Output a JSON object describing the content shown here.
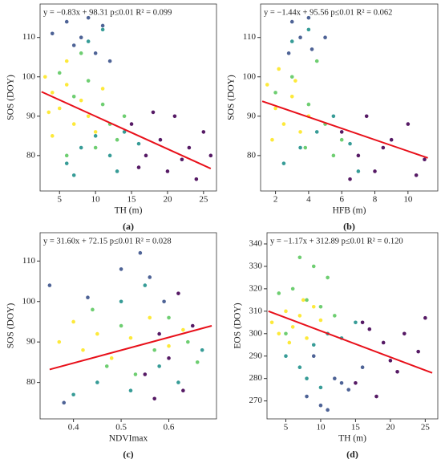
{
  "chart_data": [
    {
      "type": "scatter",
      "annotation": "y = −0.83x + 98.31  p≤0.01 R² = 0.099",
      "panel_label": "(a)",
      "x_label": "TH (m)",
      "y_label": "SOS (DOY)",
      "xlim": [
        2.3,
        26.8
      ],
      "ylim": [
        71,
        118.5
      ],
      "xticks": [
        5,
        10,
        15,
        20,
        25
      ],
      "yticks": [
        80,
        90,
        100,
        110
      ],
      "series": [
        {
          "color": "#fde725",
          "x": [
            3,
            4,
            5,
            6,
            7,
            8,
            9,
            4,
            6,
            10,
            11,
            3.5
          ],
          "values": [
            100,
            96,
            92,
            98,
            88,
            94,
            90,
            85,
            104,
            86,
            97,
            91
          ]
        },
        {
          "color": "#5ec962",
          "x": [
            5,
            7,
            9,
            11,
            12,
            13,
            8,
            6,
            10,
            14
          ],
          "values": [
            101,
            95,
            99,
            93,
            88,
            84,
            106,
            80,
            82,
            90
          ]
        },
        {
          "color": "#21918c",
          "x": [
            6,
            8,
            10,
            12,
            14,
            16,
            9,
            11,
            13,
            7
          ],
          "values": [
            78,
            82,
            85,
            80,
            86,
            83,
            109,
            112,
            76,
            75
          ]
        },
        {
          "color": "#3b528b",
          "x": [
            4,
            6,
            8,
            9,
            11,
            7,
            10,
            12
          ],
          "values": [
            111,
            114,
            110,
            115,
            113,
            108,
            106,
            104
          ]
        },
        {
          "color": "#440154",
          "x": [
            15,
            17,
            19,
            20,
            21,
            22,
            23,
            24,
            25,
            18,
            16,
            26
          ],
          "values": [
            88,
            80,
            84,
            76,
            90,
            79,
            82,
            74,
            86,
            91,
            77,
            80
          ]
        }
      ],
      "fit": {
        "color": "#e8101a",
        "x": [
          2.5,
          26
        ],
        "values": [
          96.2,
          76.7
        ]
      }
    },
    {
      "type": "scatter",
      "annotation": "y = −1.44x + 95.56  p≤0.01 R² = 0.062",
      "panel_label": "(b)",
      "x_label": "HFB (m)",
      "y_label": "SOS (DOY)",
      "xlim": [
        1.1,
        11.8
      ],
      "ylim": [
        71,
        118.5
      ],
      "xticks": [
        2,
        4,
        6,
        8,
        10
      ],
      "yticks": [
        80,
        90,
        100,
        110
      ],
      "series": [
        {
          "color": "#fde725",
          "x": [
            1.5,
            2,
            2.5,
            3,
            3.5,
            2.2,
            4,
            1.8,
            3.2
          ],
          "values": [
            98,
            92,
            88,
            95,
            86,
            102,
            90,
            84,
            99
          ]
        },
        {
          "color": "#5ec962",
          "x": [
            2,
            3,
            4,
            5,
            6,
            4.5,
            5.5,
            3.8
          ],
          "values": [
            96,
            100,
            93,
            88,
            84,
            104,
            80,
            82
          ]
        },
        {
          "color": "#21918c",
          "x": [
            2.5,
            3.5,
            4.5,
            5.5,
            6.5,
            7,
            3,
            4
          ],
          "values": [
            78,
            82,
            86,
            90,
            83,
            76,
            109,
            112
          ]
        },
        {
          "color": "#3b528b",
          "x": [
            3,
            3.5,
            4,
            4.2,
            2.8,
            5
          ],
          "values": [
            114,
            110,
            115,
            107,
            106,
            110
          ]
        },
        {
          "color": "#440154",
          "x": [
            6,
            7,
            7.5,
            8,
            9,
            10,
            10.5,
            11,
            6.5,
            8.5
          ],
          "values": [
            86,
            80,
            90,
            76,
            84,
            88,
            75,
            79,
            74,
            82
          ]
        }
      ],
      "fit": {
        "color": "#e8101a",
        "x": [
          1.2,
          11.2
        ],
        "values": [
          93.8,
          79.4
        ]
      }
    },
    {
      "type": "scatter",
      "annotation": "y = 31.60x + 72.15  p≤0.01 R² = 0.028",
      "panel_label": "(c)",
      "x_label": "NDVImax",
      "y_label": "SOS (DOY)",
      "xlim": [
        0.33,
        0.7
      ],
      "ylim": [
        71,
        117
      ],
      "xticks": [
        0.4,
        0.5,
        0.6
      ],
      "yticks": [
        80,
        90,
        100,
        110
      ],
      "series": [
        {
          "color": "#fde725",
          "x": [
            0.37,
            0.4,
            0.42,
            0.45,
            0.48,
            0.52,
            0.56,
            0.6,
            0.63
          ],
          "values": [
            90,
            95,
            88,
            92,
            86,
            91,
            96,
            89,
            93
          ]
        },
        {
          "color": "#5ec962",
          "x": [
            0.44,
            0.47,
            0.5,
            0.53,
            0.57,
            0.6,
            0.64,
            0.66
          ],
          "values": [
            98,
            84,
            94,
            82,
            88,
            96,
            90,
            85
          ]
        },
        {
          "color": "#21918c",
          "x": [
            0.45,
            0.5,
            0.52,
            0.55,
            0.58,
            0.62,
            0.67,
            0.4
          ],
          "values": [
            80,
            100,
            78,
            104,
            84,
            80,
            88,
            77
          ]
        },
        {
          "color": "#3b528b",
          "x": [
            0.35,
            0.43,
            0.5,
            0.54,
            0.56,
            0.59,
            0.38
          ],
          "values": [
            104,
            101,
            108,
            112,
            106,
            100,
            75
          ]
        },
        {
          "color": "#440154",
          "x": [
            0.55,
            0.58,
            0.6,
            0.62,
            0.63,
            0.65,
            0.57
          ],
          "values": [
            82,
            92,
            86,
            102,
            78,
            94,
            76
          ]
        }
      ],
      "fit": {
        "color": "#e8101a",
        "x": [
          0.35,
          0.69
        ],
        "values": [
          83.2,
          94
        ]
      }
    },
    {
      "type": "scatter",
      "annotation": "y = −1.17x + 312.89  p≤0.01 R² = 0.120",
      "panel_label": "(d)",
      "x_label": "TH (m)",
      "y_label": "EOS (DOY)",
      "xlim": [
        2.3,
        26.8
      ],
      "ylim": [
        262,
        345
      ],
      "xticks": [
        5,
        10,
        15,
        20,
        25
      ],
      "yticks": [
        270,
        280,
        290,
        300,
        310,
        320,
        330,
        340
      ],
      "series": [
        {
          "color": "#fde725",
          "x": [
            3,
            4,
            5,
            6,
            7,
            8,
            9,
            10,
            5.5,
            7.5
          ],
          "values": [
            305,
            300,
            310,
            303,
            308,
            298,
            312,
            306,
            296,
            315
          ]
        },
        {
          "color": "#5ec962",
          "x": [
            4,
            6,
            8,
            10,
            12,
            7,
            9,
            11,
            5
          ],
          "values": [
            318,
            320,
            315,
            312,
            308,
            334,
            330,
            325,
            300
          ]
        },
        {
          "color": "#21918c",
          "x": [
            5,
            7,
            9,
            11,
            13,
            15,
            8,
            10
          ],
          "values": [
            290,
            285,
            295,
            300,
            298,
            305,
            280,
            276
          ]
        },
        {
          "color": "#3b528b",
          "x": [
            8,
            10,
            12,
            14,
            16,
            11,
            13,
            9
          ],
          "values": [
            272,
            268,
            280,
            275,
            285,
            266,
            278,
            290
          ]
        },
        {
          "color": "#440154",
          "x": [
            15,
            17,
            19,
            20,
            22,
            24,
            25,
            18,
            21,
            16
          ],
          "values": [
            278,
            302,
            296,
            288,
            300,
            292,
            307,
            272,
            283,
            305
          ]
        }
      ],
      "fit": {
        "color": "#e8101a",
        "x": [
          2.5,
          26
        ],
        "values": [
          310,
          282.5
        ]
      }
    }
  ]
}
